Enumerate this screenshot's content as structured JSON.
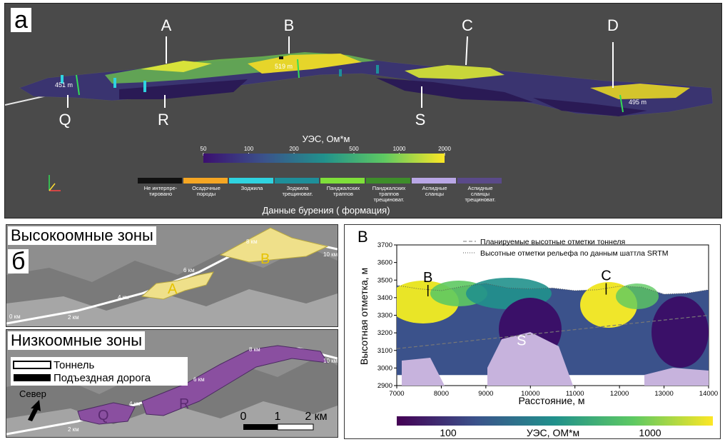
{
  "panel_a": {
    "letter": "а",
    "top_labels": [
      "A",
      "B",
      "C",
      "D"
    ],
    "bottom_labels": [
      "Q",
      "R",
      "S"
    ],
    "elevation_tags": [
      "451 m",
      "519 m",
      "495 m"
    ],
    "colorbar": {
      "title": "УЭС, Ом*м",
      "ticks": [
        "50",
        "100",
        "200",
        "500",
        "1000",
        "2000"
      ]
    },
    "legend_title": "Данные бурения   ( формация)",
    "legend": [
      {
        "label": "Не интерпре-\nтировано",
        "color": "#111111"
      },
      {
        "label": "Осадочные\nпороды",
        "color": "#f5a623"
      },
      {
        "label": "Зоджила",
        "color": "#2fd3e0"
      },
      {
        "label": "Зоджила\nтрещиноват.",
        "color": "#1e8f9a"
      },
      {
        "label": "Панджалских\nтраппов",
        "color": "#7fe03a"
      },
      {
        "label": "Панджалских\nтраппов\nтрещиноват.",
        "color": "#3e8e2a"
      },
      {
        "label": "Аспидные\nсланцы",
        "color": "#b9a7e6"
      },
      {
        "label": "Аспидные\nсланцы\nтрещиноват.",
        "color": "#5a4a8a"
      }
    ],
    "colors": {
      "low": "#3b0f6f",
      "mid": "#21918c",
      "high": "#fde725"
    }
  },
  "panel_b": {
    "letter": "б",
    "high_title": "Высокоомные зоны",
    "low_title": "Низкоомные зоны",
    "high_zones": [
      "A",
      "B"
    ],
    "low_zones": [
      "Q",
      "R"
    ],
    "km_marks_top": [
      "0 км",
      "2 км",
      "4 км",
      "6 км",
      "8 км",
      "10 км"
    ],
    "km_marks_bottom": [
      "2 км",
      "4 км",
      "6 км",
      "8 км",
      "10 км"
    ],
    "legend_tunnel": "Тоннель",
    "legend_road": "Подъездная дорога",
    "north": "Север",
    "scale_ticks": [
      "0",
      "1",
      "2 км"
    ],
    "colors": {
      "high_zone": "#efe08a",
      "low_zone": "#8a4fa0"
    }
  },
  "panel_v": {
    "letter": "В",
    "chart_data": {
      "type": "heatmap",
      "xlabel": "Расстояние, м",
      "ylabel": "Высотная отметка, м",
      "xlim": [
        7000,
        14000
      ],
      "ylim": [
        2900,
        3700
      ],
      "xticks": [
        7000,
        8000,
        9000,
        10000,
        11000,
        12000,
        13000,
        14000
      ],
      "yticks": [
        2900,
        3000,
        3100,
        3200,
        3300,
        3400,
        3500,
        3600,
        3700
      ],
      "legend": [
        "Планируемые высотные отметки тоннеля",
        "Высотные отметки рельефа по данным шаттла SRTM"
      ],
      "tunnel_line": {
        "x": [
          7000,
          14000
        ],
        "y": [
          3110,
          3300
        ]
      },
      "terrain": {
        "x": [
          7000,
          7500,
          8000,
          8500,
          9000,
          9500,
          10000,
          10500,
          11000,
          11500,
          12000,
          12500,
          13000,
          13500,
          14000
        ],
        "y": [
          3470,
          3450,
          3440,
          3465,
          3480,
          3455,
          3450,
          3455,
          3440,
          3445,
          3465,
          3460,
          3420,
          3425,
          3445
        ]
      },
      "annotations": [
        {
          "text": "B",
          "x": 7700,
          "y": 3440
        },
        {
          "text": "C",
          "x": 11700,
          "y": 3450
        },
        {
          "text": "S",
          "x": 9800,
          "y": 3080
        }
      ],
      "colorbar": {
        "label": "УЭС, ОМ*м",
        "ticks": [
          "100",
          "1000"
        ],
        "scale": "log"
      }
    }
  }
}
